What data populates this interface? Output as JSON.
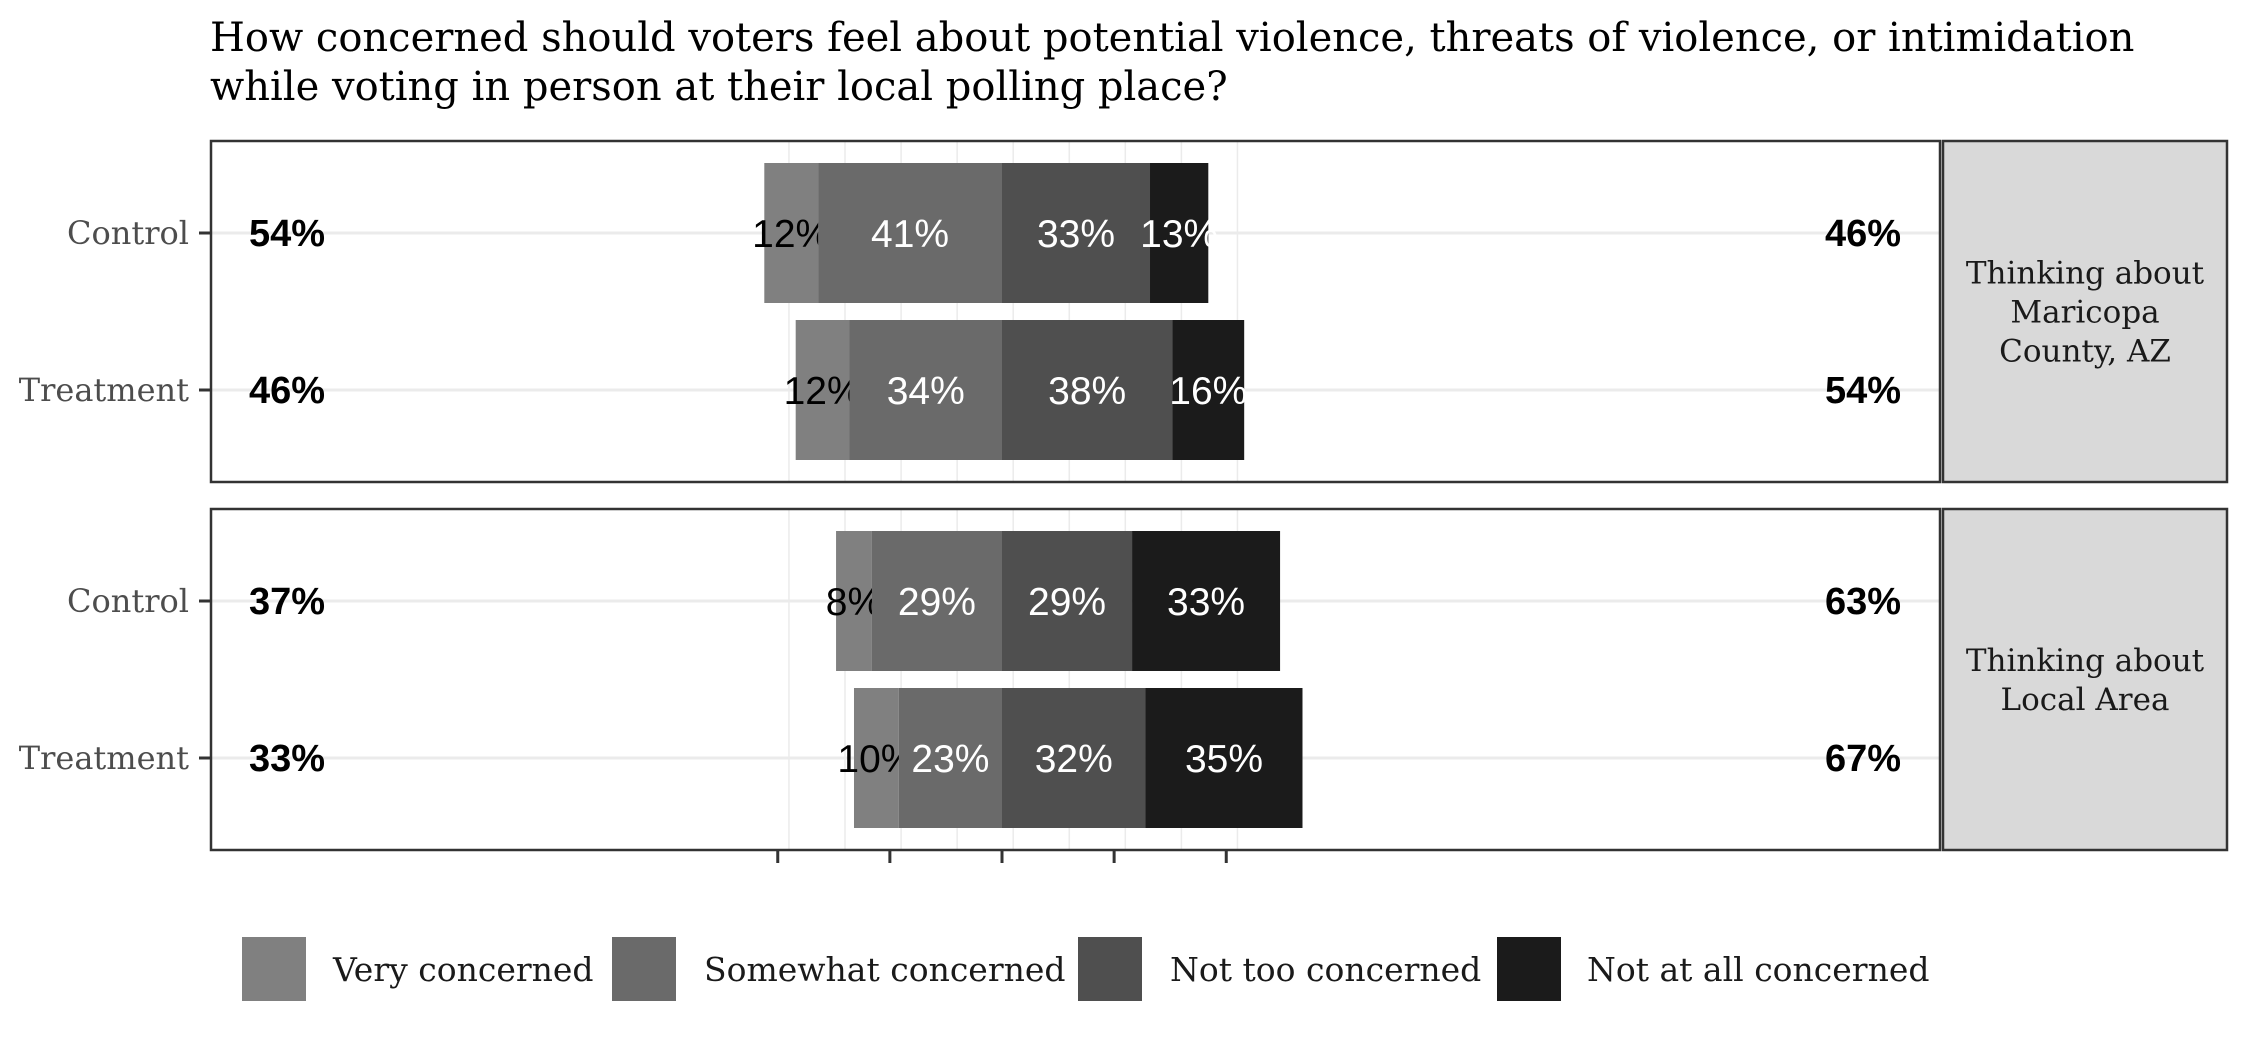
{
  "chart_data": {
    "type": "bar",
    "orientation": "horizontal",
    "stacking": "diverging",
    "title": "How concerned should voters feel about potential violence, threats of violence, or intimidation while voting in person at their local polling place?",
    "title_lines": [
      "How concerned should voters feel about potential violence, threats of violence, or intimidation",
      "while voting in person at their local polling place?"
    ],
    "xlabel": "",
    "ylabel": "",
    "xlim": [
      -0.6,
      0.6
    ],
    "x_ticks": [
      -0.5,
      -0.25,
      0,
      0.25,
      0.5
    ],
    "grid": true,
    "legend_position": "bottom",
    "categories": [
      "Very concerned",
      "Somewhat concerned",
      "Not too concerned",
      "Not at all concerned"
    ],
    "colors": [
      "#808080",
      "#6a6a6a",
      "#4f4f4f",
      "#1b1b1b"
    ],
    "label_colors": [
      "#000000",
      "#ffffff",
      "#ffffff",
      "#ffffff"
    ],
    "panels": [
      {
        "strip_lines": [
          "Thinking about",
          "Maricopa",
          "County, AZ"
        ],
        "rows": [
          {
            "label": "Control",
            "values": [
              12,
              41,
              33,
              13
            ],
            "value_labels": [
              "12%",
              "41%",
              "33%",
              "13%"
            ],
            "left_total": "54%",
            "right_total": "46%"
          },
          {
            "label": "Treatment",
            "values": [
              12,
              34,
              38,
              16
            ],
            "value_labels": [
              "12%",
              "34%",
              "38%",
              "16%"
            ],
            "left_total": "46%",
            "right_total": "54%"
          }
        ]
      },
      {
        "strip_lines": [
          "Thinking about",
          "Local Area"
        ],
        "rows": [
          {
            "label": "Control",
            "values": [
              8,
              29,
              29,
              33
            ],
            "value_labels": [
              "8%",
              "29%",
              "29%",
              "33%"
            ],
            "left_total": "37%",
            "right_total": "63%"
          },
          {
            "label": "Treatment",
            "values": [
              10,
              23,
              32,
              35
            ],
            "value_labels": [
              "10%",
              "23%",
              "32%",
              "35%"
            ],
            "left_total": "33%",
            "right_total": "67%"
          }
        ]
      }
    ]
  }
}
